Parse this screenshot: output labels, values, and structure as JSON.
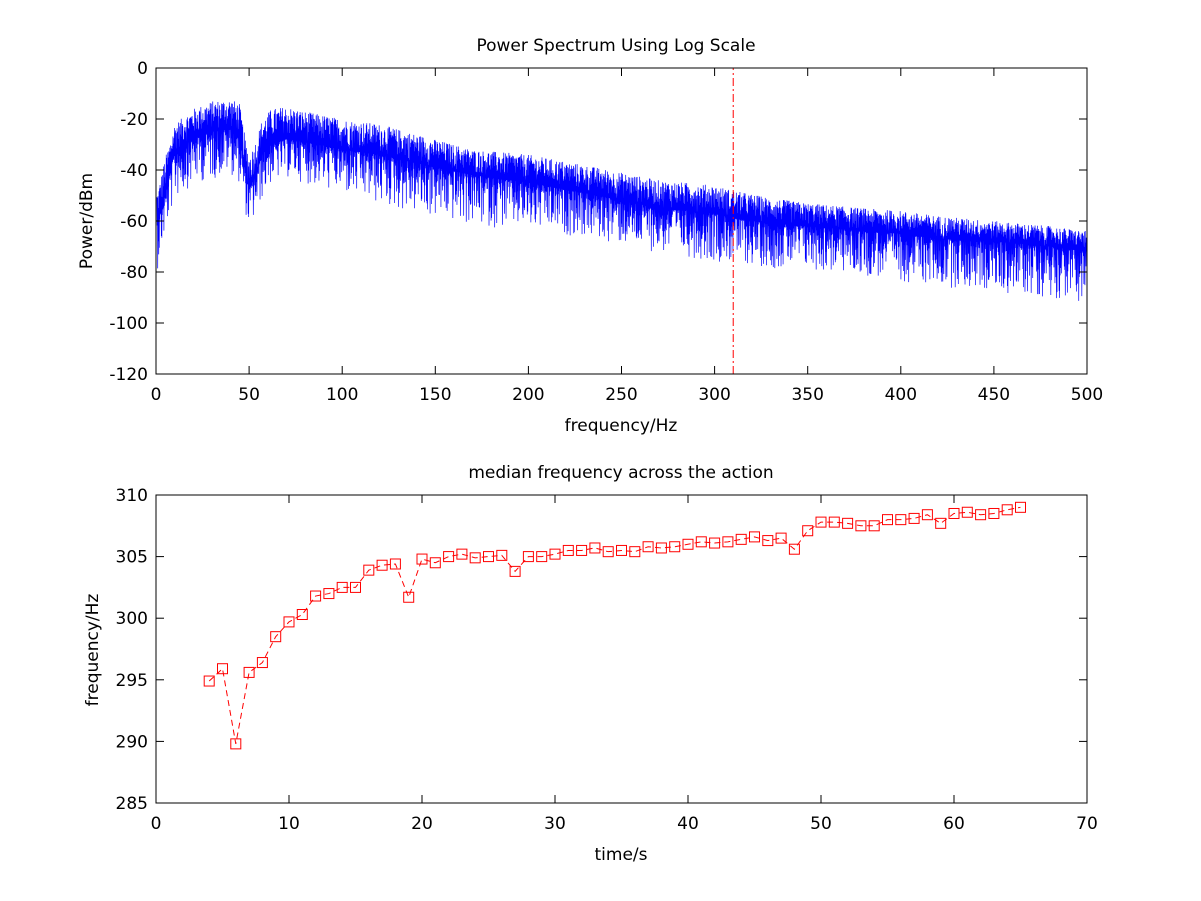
{
  "chart_data": [
    {
      "type": "line",
      "title": "Power Spectrum Using Log Scale",
      "xlabel": "frequency/Hz",
      "ylabel": "Power/dBm",
      "xlim": [
        0,
        500
      ],
      "ylim": [
        -120,
        0
      ],
      "xticks": [
        0,
        50,
        100,
        150,
        200,
        250,
        300,
        350,
        400,
        450,
        500
      ],
      "yticks": [
        -120,
        -100,
        -80,
        -60,
        -40,
        -20,
        0
      ],
      "grid": false,
      "series": [
        {
          "color": "#0000ff",
          "style": "solid",
          "envelope_x": [
            1,
            5,
            10,
            20,
            30,
            40,
            45,
            48,
            50,
            53,
            57,
            62,
            70,
            80,
            100,
            120,
            150,
            170,
            200,
            230,
            250,
            270,
            300,
            310,
            330,
            350,
            380,
            400,
            420,
            450,
            480,
            500
          ],
          "upper": [
            -48,
            -35,
            -22,
            -16,
            -13,
            -12,
            -14,
            -28,
            -34,
            -30,
            -20,
            -16,
            -15,
            -17,
            -20,
            -22,
            -28,
            -32,
            -34,
            -38,
            -41,
            -44,
            -46,
            -48,
            -51,
            -53,
            -55,
            -56,
            -58,
            -60,
            -62,
            -64
          ],
          "mean": [
            -60,
            -50,
            -33,
            -28,
            -25,
            -24,
            -28,
            -42,
            -48,
            -43,
            -34,
            -30,
            -28,
            -29,
            -32,
            -34,
            -39,
            -42,
            -45,
            -49,
            -52,
            -55,
            -57,
            -59,
            -61,
            -62,
            -64,
            -65,
            -67,
            -68,
            -70,
            -72
          ],
          "lower": [
            -75,
            -62,
            -48,
            -42,
            -40,
            -38,
            -42,
            -54,
            -60,
            -56,
            -48,
            -42,
            -40,
            -42,
            -46,
            -50,
            -55,
            -58,
            -60,
            -63,
            -66,
            -69,
            -72,
            -73,
            -75,
            -76,
            -78,
            -80,
            -82,
            -84,
            -86,
            -88
          ]
        },
        {
          "color": "#ff0000",
          "style": "dash-dot",
          "x": [
            310,
            310
          ],
          "y": [
            -120,
            0
          ]
        }
      ]
    },
    {
      "type": "line",
      "title": "median frequency across the action",
      "xlabel": "time/s",
      "ylabel": "frequency/Hz",
      "xlim": [
        0,
        70
      ],
      "ylim": [
        285,
        310
      ],
      "xticks": [
        0,
        10,
        20,
        30,
        40,
        50,
        60,
        70
      ],
      "yticks": [
        285,
        290,
        295,
        300,
        305,
        310
      ],
      "grid": false,
      "series": [
        {
          "color": "#ff0000",
          "style": "dashed",
          "marker": "square",
          "x": [
            4,
            5,
            6,
            7,
            8,
            9,
            10,
            11,
            12,
            13,
            14,
            15,
            16,
            17,
            18,
            19,
            20,
            21,
            22,
            23,
            24,
            25,
            26,
            27,
            28,
            29,
            30,
            31,
            32,
            33,
            34,
            35,
            36,
            37,
            38,
            39,
            40,
            41,
            42,
            43,
            44,
            45,
            46,
            47,
            48,
            49,
            50,
            51,
            52,
            53,
            54,
            55,
            56,
            57,
            58,
            59,
            60,
            61,
            62,
            63,
            64,
            65
          ],
          "y": [
            294.9,
            295.9,
            289.8,
            295.6,
            296.4,
            298.5,
            299.7,
            300.3,
            301.8,
            302.0,
            302.5,
            302.5,
            303.9,
            304.3,
            304.4,
            301.7,
            304.8,
            304.5,
            305.0,
            305.2,
            304.9,
            305.0,
            305.1,
            303.8,
            305.0,
            305.0,
            305.2,
            305.5,
            305.5,
            305.7,
            305.4,
            305.5,
            305.4,
            305.8,
            305.7,
            305.8,
            306.0,
            306.2,
            306.1,
            306.2,
            306.4,
            306.6,
            306.3,
            306.5,
            305.6,
            307.1,
            307.8,
            307.8,
            307.7,
            307.5,
            307.5,
            308.0,
            308.0,
            308.1,
            308.4,
            307.7,
            308.5,
            308.6,
            308.4,
            308.5,
            308.8,
            309.0
          ]
        }
      ]
    }
  ]
}
